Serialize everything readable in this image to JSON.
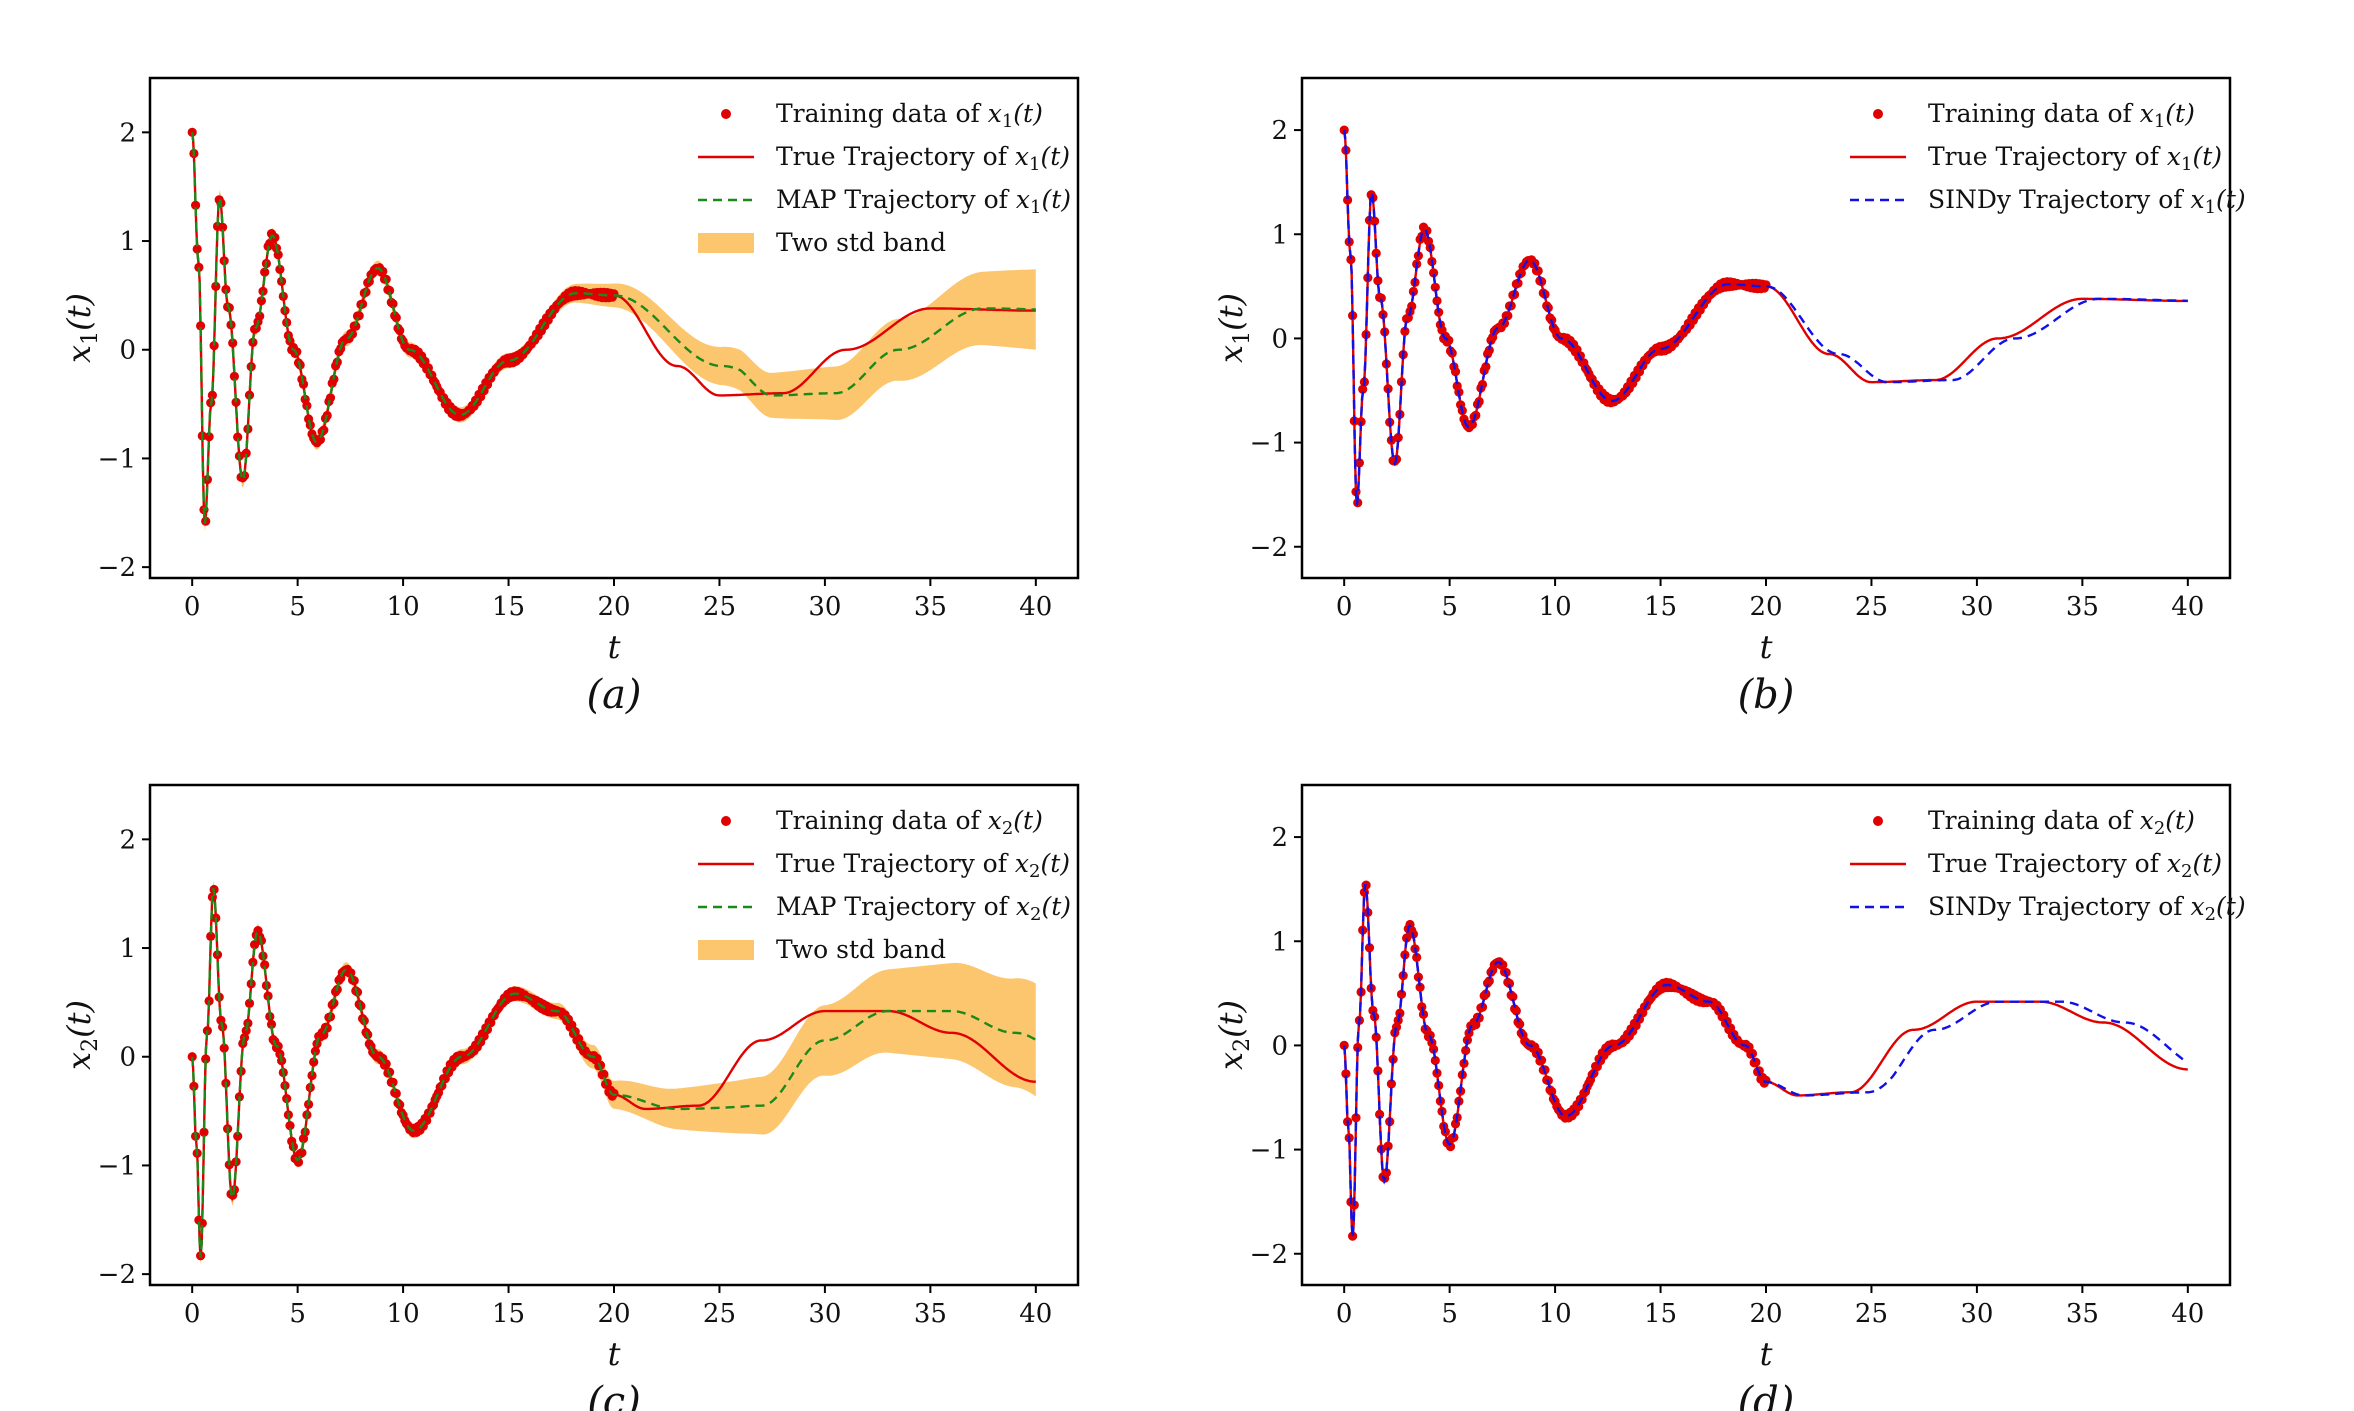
{
  "chart_data": [
    {
      "type": "line",
      "caption": "(a)",
      "xlabel": "t",
      "ylabel": "x1(t)",
      "xlim": [
        -2,
        42
      ],
      "ylim": [
        -2.1,
        2.5
      ],
      "xticks": [
        0,
        5,
        10,
        15,
        20,
        25,
        30,
        35,
        40
      ],
      "yticks": [
        -2,
        -1,
        0,
        1,
        2
      ],
      "legend": "top-right",
      "series": [
        {
          "name": "Training data of x1(t)",
          "kind": "scatter",
          "color": "#e00000",
          "fn": "x1",
          "x_range": [
            0,
            20
          ]
        },
        {
          "name": "True Trajectory of x1(t)",
          "kind": "line",
          "color": "#e00000",
          "fn": "x1",
          "x_range": [
            0,
            40
          ]
        },
        {
          "name": "MAP Trajectory of x1(t)",
          "kind": "dashed",
          "color": "#1a8a1a",
          "fn": "x1",
          "x_range": [
            0,
            40
          ],
          "after_20": "lags truth by ~2.5"
        },
        {
          "name": "Two std band",
          "kind": "band",
          "color": "#fcc66f",
          "fn": "x1",
          "x_range": [
            0,
            40
          ],
          "half_width_at_40": 0.3
        }
      ]
    },
    {
      "type": "line",
      "caption": "(b)",
      "xlabel": "t",
      "ylabel": "x1(t)",
      "xlim": [
        -2,
        42
      ],
      "ylim": [
        -2.3,
        2.5
      ],
      "xticks": [
        0,
        5,
        10,
        15,
        20,
        25,
        30,
        35,
        40
      ],
      "yticks": [
        -2,
        -1,
        0,
        1,
        2
      ],
      "legend": "top-right",
      "series": [
        {
          "name": "Training data of x1(t)",
          "kind": "scatter",
          "color": "#e00000",
          "fn": "x1",
          "x_range": [
            0,
            20
          ]
        },
        {
          "name": "True Trajectory of x1(t)",
          "kind": "line",
          "color": "#e00000",
          "fn": "x1",
          "x_range": [
            0,
            40
          ]
        },
        {
          "name": "SINDy Trajectory of x1(t)",
          "kind": "dashed",
          "color": "#1010e8",
          "fn": "x1",
          "x_range": [
            0,
            40
          ],
          "after_20": "lags truth by ~0.8"
        }
      ]
    },
    {
      "type": "line",
      "caption": "(c)",
      "xlabel": "t",
      "ylabel": "x2(t)",
      "xlim": [
        -2,
        42
      ],
      "ylim": [
        -2.1,
        2.5
      ],
      "xticks": [
        0,
        5,
        10,
        15,
        20,
        25,
        30,
        35,
        40
      ],
      "yticks": [
        -2,
        -1,
        0,
        1,
        2
      ],
      "legend": "top-right",
      "series": [
        {
          "name": "Training data of x2(t)",
          "kind": "scatter",
          "color": "#e00000",
          "fn": "x2",
          "x_range": [
            0,
            20
          ]
        },
        {
          "name": "True Trajectory of x2(t)",
          "kind": "line",
          "color": "#e00000",
          "fn": "x2",
          "x_range": [
            0,
            40
          ]
        },
        {
          "name": "MAP Trajectory of x2(t)",
          "kind": "dashed",
          "color": "#1a8a1a",
          "fn": "x2",
          "x_range": [
            0,
            40
          ],
          "after_20": "lags truth by ~3"
        },
        {
          "name": "Two std band",
          "kind": "band",
          "color": "#fcc66f",
          "fn": "x2",
          "x_range": [
            0,
            40
          ],
          "half_width_at_40": 0.45
        }
      ]
    },
    {
      "type": "line",
      "caption": "(d)",
      "xlabel": "t",
      "ylabel": "x2(t)",
      "xlim": [
        -2,
        42
      ],
      "ylim": [
        -2.3,
        2.5
      ],
      "xticks": [
        0,
        5,
        10,
        15,
        20,
        25,
        30,
        35,
        40
      ],
      "yticks": [
        -2,
        -1,
        0,
        1,
        2
      ],
      "legend": "top-right",
      "series": [
        {
          "name": "Training data of x2(t)",
          "kind": "scatter",
          "color": "#e00000",
          "fn": "x2",
          "x_range": [
            0,
            20
          ]
        },
        {
          "name": "True Trajectory of x2(t)",
          "kind": "line",
          "color": "#e00000",
          "fn": "x2",
          "x_range": [
            0,
            40
          ]
        },
        {
          "name": "SINDy Trajectory of x2(t)",
          "kind": "dashed",
          "color": "#1010e8",
          "fn": "x2",
          "x_range": [
            0,
            40
          ],
          "after_20": "lags truth by ~1"
        }
      ]
    }
  ],
  "trajectory_samples": {
    "x1": [
      [
        0,
        2.0
      ],
      [
        0.3,
        0.8
      ],
      [
        0.6,
        -1.6
      ],
      [
        0.9,
        -0.5
      ],
      [
        1.3,
        1.4
      ],
      [
        1.7,
        0.4
      ],
      [
        2.4,
        -1.2
      ],
      [
        3.0,
        0.2
      ],
      [
        3.8,
        1.05
      ],
      [
        4.8,
        0.0
      ],
      [
        5.9,
        -0.85
      ],
      [
        7.3,
        0.1
      ],
      [
        8.8,
        0.75
      ],
      [
        10.3,
        0.0
      ],
      [
        12.7,
        -0.6
      ],
      [
        15.0,
        -0.1
      ],
      [
        18.2,
        0.52
      ],
      [
        20.0,
        0.5
      ],
      [
        23.0,
        -0.15
      ],
      [
        25.0,
        -0.42
      ],
      [
        28.0,
        -0.4
      ],
      [
        31.0,
        0.0
      ],
      [
        35.0,
        0.38
      ],
      [
        40.0,
        0.36
      ]
    ],
    "x2": [
      [
        0,
        0.0
      ],
      [
        0.2,
        -0.8
      ],
      [
        0.4,
        -1.85
      ],
      [
        0.7,
        0.2
      ],
      [
        1.0,
        1.55
      ],
      [
        1.4,
        0.3
      ],
      [
        1.9,
        -1.3
      ],
      [
        2.5,
        0.2
      ],
      [
        3.1,
        1.15
      ],
      [
        4.0,
        0.1
      ],
      [
        5.0,
        -0.95
      ],
      [
        6.1,
        0.2
      ],
      [
        7.3,
        0.8
      ],
      [
        8.8,
        0.0
      ],
      [
        10.5,
        -0.68
      ],
      [
        12.8,
        0.0
      ],
      [
        15.3,
        0.58
      ],
      [
        17.3,
        0.42
      ],
      [
        19.0,
        0.0
      ],
      [
        20.0,
        -0.35
      ],
      [
        21.5,
        -0.48
      ],
      [
        24.0,
        -0.45
      ],
      [
        27.0,
        0.15
      ],
      [
        30.0,
        0.42
      ],
      [
        33.0,
        0.42
      ],
      [
        36.0,
        0.22
      ],
      [
        40.0,
        -0.23
      ]
    ]
  }
}
